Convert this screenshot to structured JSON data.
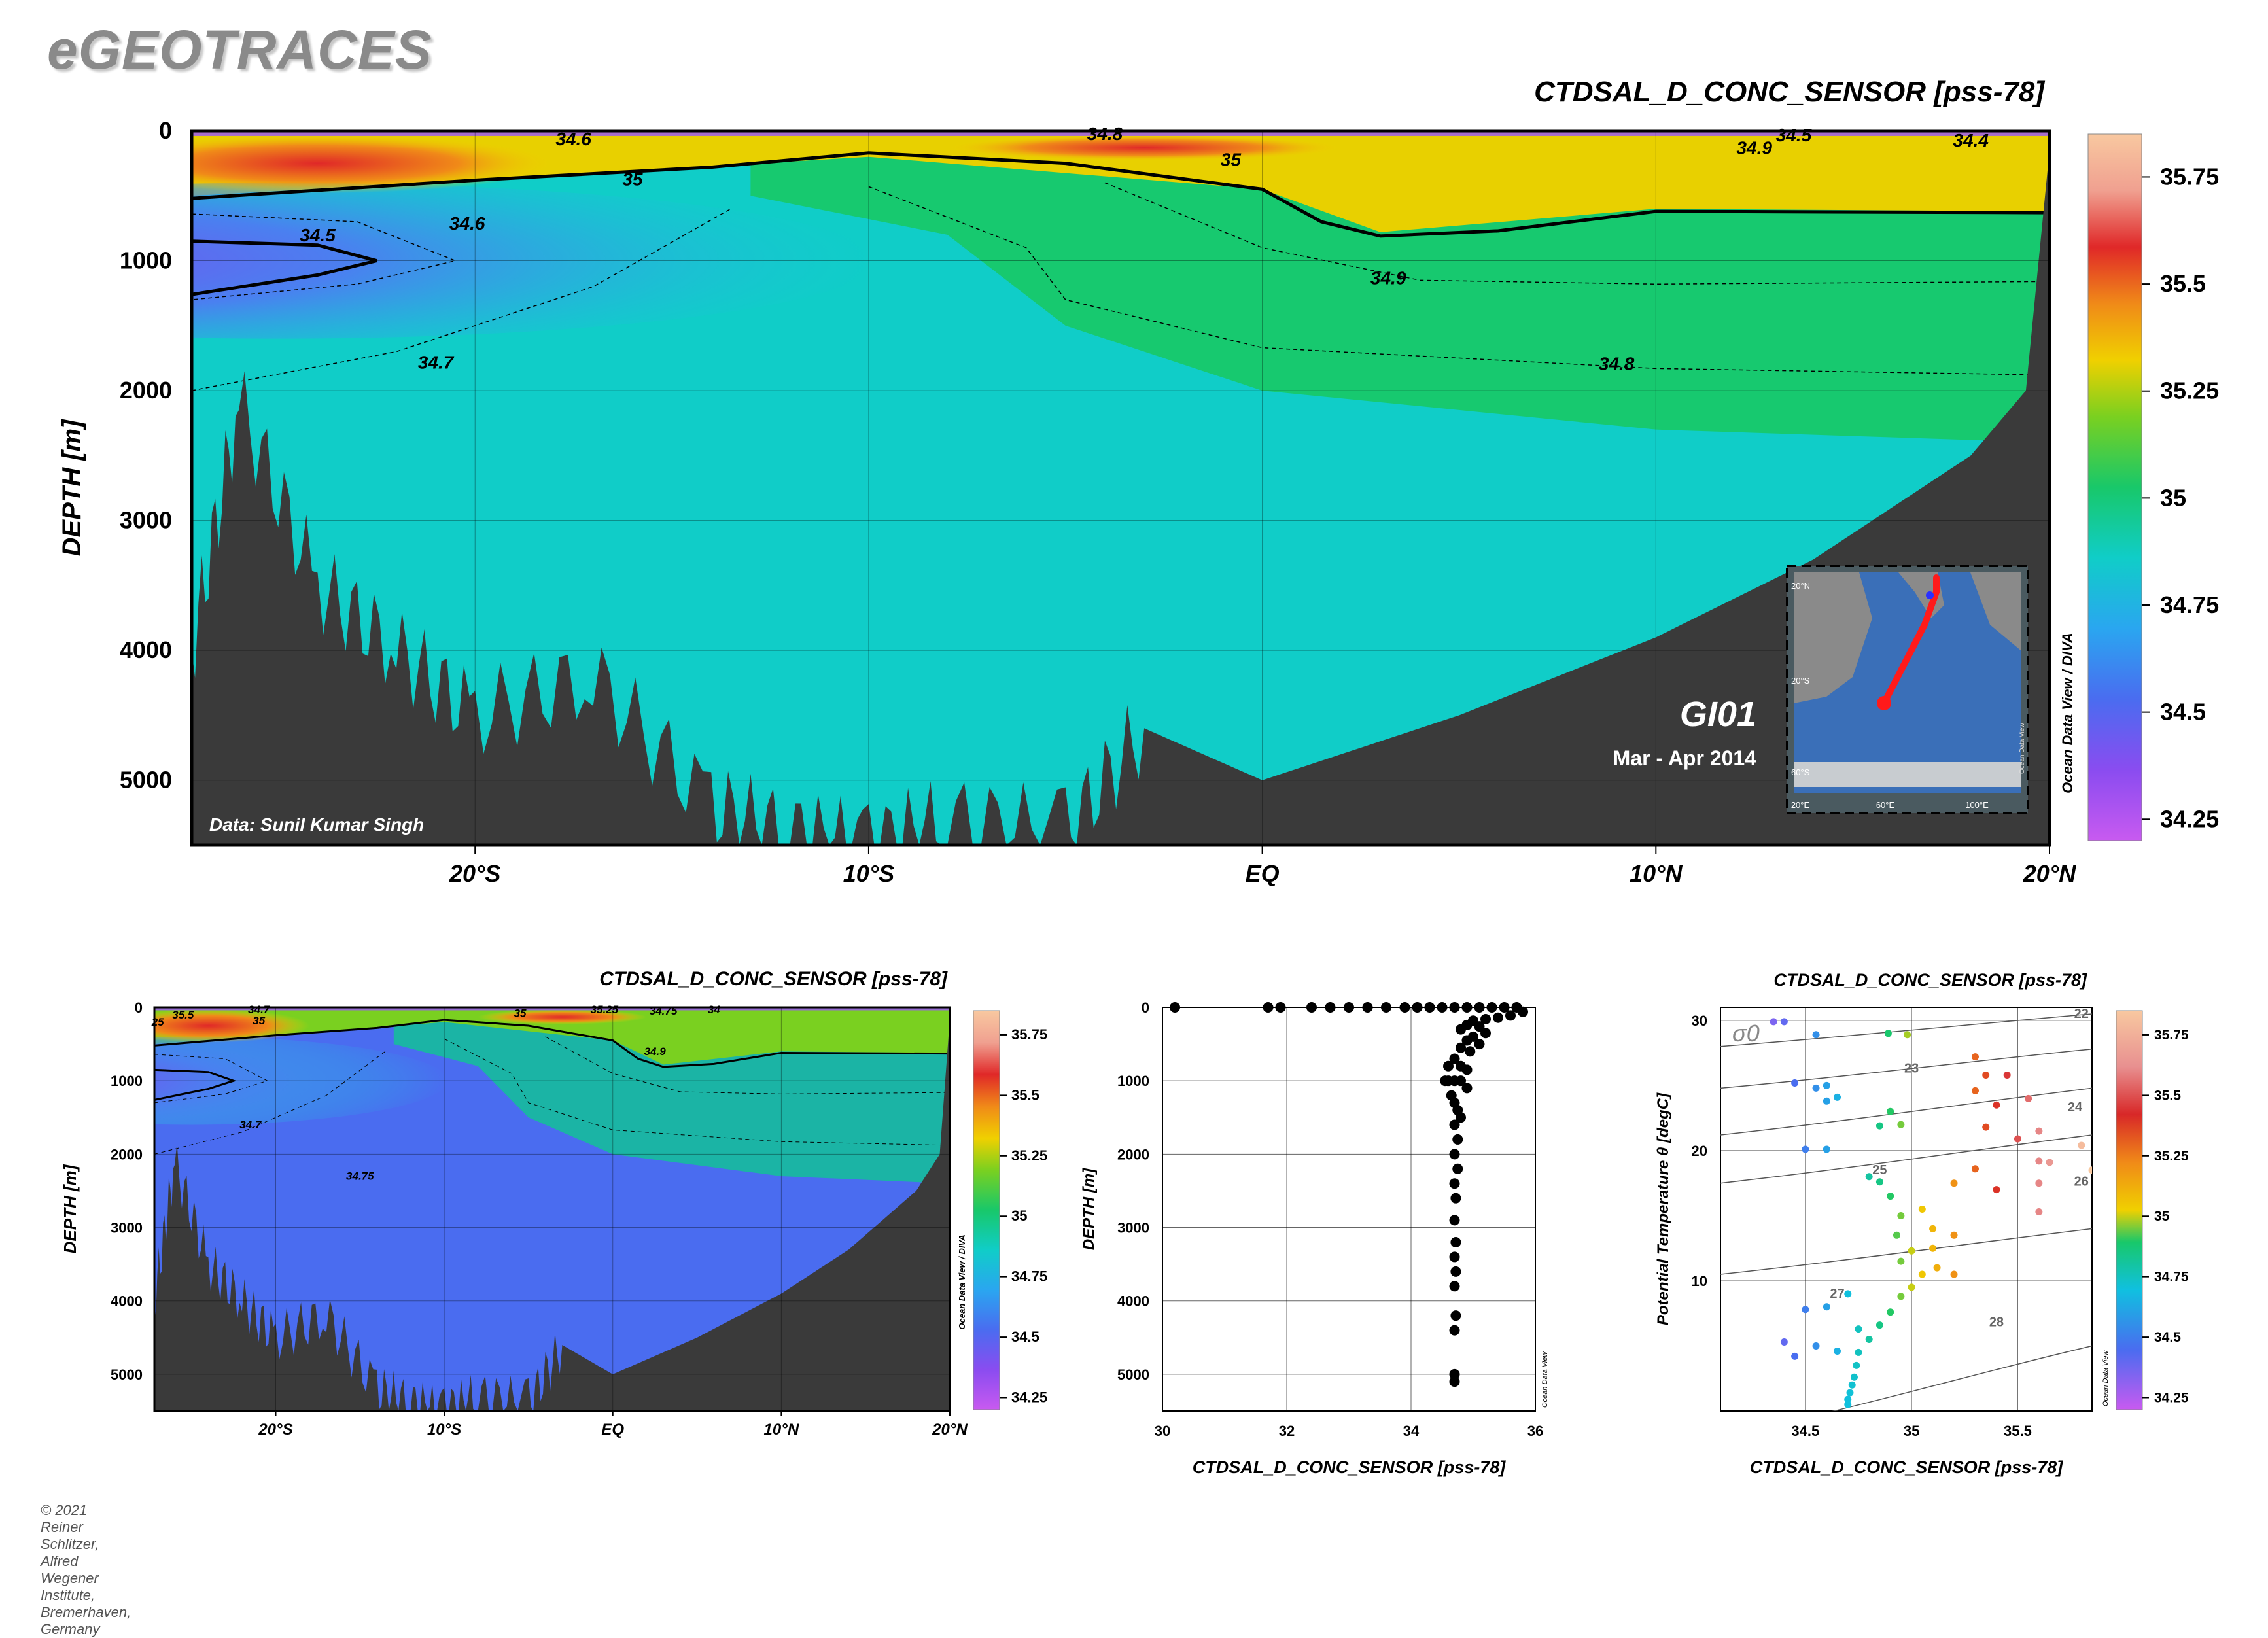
{
  "brand": "eGEOTRACES",
  "copyright": "© 2021 Reiner Schlitzer, Alfred Wegener Institute, Bremerhaven, Germany",
  "colors": {
    "land": "#3a3a3a",
    "salinity_scale": [
      "#c85af0",
      "#8a4cf0",
      "#4a6cf0",
      "#2aa6f0",
      "#10cdc8",
      "#18c86a",
      "#7ad020",
      "#f0d000",
      "#f08a18",
      "#e02828",
      "#f0a090",
      "#f8c8a0"
    ]
  },
  "section_main": {
    "title": "CTDSAL_D_CONC_SENSOR [pss-78]",
    "ylabel": "DEPTH [m]",
    "ytick_labels": [
      "0",
      "1000",
      "2000",
      "3000",
      "4000",
      "5000"
    ],
    "xtick_labels": [
      "20°S",
      "10°S",
      "EQ",
      "10°N",
      "20°N"
    ],
    "credit": "Data: Sunil Kumar Singh",
    "cruise": "GI01",
    "period": "Mar - Apr 2014",
    "side_label": "Ocean Data View / DIVA",
    "colorbar_labels": [
      "35.75",
      "35.5",
      "35.25",
      "35",
      "34.75",
      "34.5",
      "34.25"
    ],
    "contour_labels": [
      "34.6",
      "34.8",
      "34.5",
      "34.9",
      "34.4",
      "35",
      "35",
      "34.5",
      "34.6",
      "34.9",
      "34.7",
      "34.8"
    ],
    "inset": {
      "lat_labels": [
        "20°N",
        "20°S",
        "60°S"
      ],
      "lon_labels": [
        "20°E",
        "60°E",
        "100°E"
      ],
      "side_label": "Ocean Data View"
    }
  },
  "section_small": {
    "title": "CTDSAL_D_CONC_SENSOR [pss-78]",
    "ylabel": "DEPTH [m]",
    "ytick_labels": [
      "0",
      "1000",
      "2000",
      "3000",
      "4000",
      "5000"
    ],
    "xtick_labels": [
      "20°S",
      "10°S",
      "EQ",
      "10°N",
      "20°N"
    ],
    "side_label": "Ocean Data View / DIVA",
    "colorbar_labels": [
      "35.75",
      "35.5",
      "35.25",
      "35",
      "34.75",
      "34.5",
      "34.25"
    ],
    "contour_labels": [
      "35.5",
      "34.7",
      "25",
      "35",
      "35.25",
      "34.75",
      "34",
      "35",
      "34.9",
      "34.7",
      "34.75"
    ]
  },
  "chart_data": [
    {
      "type": "heatmap",
      "title": "CTDSAL_D_CONC_SENSOR [pss-78]",
      "xlabel": "",
      "ylabel": "DEPTH [m]",
      "x_ticks": [
        "20°S",
        "10°S",
        "EQ",
        "10°N",
        "20°N"
      ],
      "xlim": [
        -27.2,
        20
      ],
      "ylim": [
        5500,
        0
      ],
      "colorbar": {
        "min": 34.2,
        "max": 35.85,
        "ticks": [
          34.25,
          34.5,
          34.75,
          35,
          35.25,
          35.5,
          35.75
        ]
      },
      "contours": [
        {
          "level": 35,
          "depth_profile": [
            [
              -27.2,
              520
            ],
            [
              -20,
              380
            ],
            [
              -14,
              280
            ],
            [
              -10,
              170
            ],
            [
              -5,
              250
            ],
            [
              0,
              450
            ],
            [
              1.5,
              700
            ],
            [
              3,
              810
            ],
            [
              6,
              770
            ],
            [
              10,
              620
            ],
            [
              20,
              630
            ]
          ]
        },
        {
          "level": 34.5,
          "depth_profile": [
            [
              -27.2,
              850
            ],
            [
              -24,
              880
            ],
            [
              -22.5,
              1000
            ],
            [
              -24,
              1110
            ],
            [
              -27.2,
              1260
            ]
          ]
        },
        {
          "level": 34.6,
          "depth_profile": [
            [
              -27.2,
              640
            ],
            [
              -23,
              700
            ],
            [
              -20.5,
              1000
            ],
            [
              -23,
              1180
            ],
            [
              -27.2,
              1300
            ]
          ]
        },
        {
          "level": 34.7,
          "depth_profile": [
            [
              -27.2,
              2000
            ],
            [
              -22,
              1700
            ],
            [
              -17,
              1200
            ],
            [
              -13.5,
              600
            ]
          ]
        },
        {
          "level": 34.8,
          "depth_profile": [
            [
              -10,
              430
            ],
            [
              -6,
              900
            ],
            [
              -5,
              1300
            ],
            [
              0,
              1670
            ],
            [
              10,
              1830
            ],
            [
              20,
              1880
            ]
          ]
        },
        {
          "level": 34.9,
          "depth_profile": [
            [
              -4,
              400
            ],
            [
              0,
              900
            ],
            [
              4,
              1150
            ],
            [
              10,
              1180
            ],
            [
              20,
              1160
            ]
          ]
        }
      ],
      "bottom_depth": [
        [
          -27.2,
          4000
        ],
        [
          -26,
          2100
        ],
        [
          -24,
          3500
        ],
        [
          -22,
          4000
        ],
        [
          -20,
          4500
        ],
        [
          -17,
          4200
        ],
        [
          -14,
          5200
        ],
        [
          -12,
          5400
        ],
        [
          -10,
          5500
        ],
        [
          -8,
          5300
        ],
        [
          -5,
          5400
        ],
        [
          -3,
          4600
        ],
        [
          0,
          5000
        ],
        [
          5,
          4500
        ],
        [
          10,
          3900
        ],
        [
          14,
          3300
        ],
        [
          18,
          2500
        ],
        [
          19.4,
          2000
        ],
        [
          20,
          150
        ]
      ],
      "annotation": [
        "Data: Sunil Kumar Singh",
        "GI01",
        "Mar - Apr 2014"
      ]
    },
    {
      "type": "heatmap",
      "title": "CTDSAL_D_CONC_SENSOR [pss-78]",
      "ylabel": "DEPTH [m]",
      "x_ticks": [
        "20°S",
        "10°S",
        "EQ",
        "10°N",
        "20°N"
      ],
      "xlim": [
        -27.2,
        20
      ],
      "ylim": [
        5500,
        0
      ],
      "colorbar": {
        "min": 34.2,
        "max": 35.85,
        "ticks": [
          34.25,
          34.5,
          34.75,
          35,
          35.25,
          35.5,
          35.75
        ]
      }
    },
    {
      "type": "scatter",
      "title": "",
      "xlabel": "CTDSAL_D_CONC_SENSOR [pss-78]",
      "ylabel": "DEPTH [m]",
      "xlim": [
        30,
        36
      ],
      "ylim": [
        5500,
        0
      ],
      "x_ticks": [
        30,
        32,
        34,
        36
      ],
      "y_ticks": [
        0,
        1000,
        2000,
        3000,
        4000,
        5000
      ],
      "side_label": "Ocean Data View",
      "points": [
        [
          30.2,
          0
        ],
        [
          31.7,
          0
        ],
        [
          31.9,
          0
        ],
        [
          32.4,
          0
        ],
        [
          32.7,
          0
        ],
        [
          33.0,
          0
        ],
        [
          33.3,
          0
        ],
        [
          33.6,
          0
        ],
        [
          33.9,
          0
        ],
        [
          34.1,
          0
        ],
        [
          34.3,
          0
        ],
        [
          34.5,
          0
        ],
        [
          34.7,
          0
        ],
        [
          34.9,
          0
        ],
        [
          35.1,
          0
        ],
        [
          35.3,
          0
        ],
        [
          35.5,
          0
        ],
        [
          35.7,
          0
        ],
        [
          35.8,
          60
        ],
        [
          35.6,
          110
        ],
        [
          35.4,
          140
        ],
        [
          35.2,
          160
        ],
        [
          35.0,
          180
        ],
        [
          34.9,
          240
        ],
        [
          35.1,
          260
        ],
        [
          34.8,
          300
        ],
        [
          35.2,
          350
        ],
        [
          35.0,
          400
        ],
        [
          34.9,
          450
        ],
        [
          35.1,
          500
        ],
        [
          34.8,
          550
        ],
        [
          34.95,
          600
        ],
        [
          34.7,
          700
        ],
        [
          34.8,
          800
        ],
        [
          34.6,
          800
        ],
        [
          34.9,
          850
        ],
        [
          34.55,
          1000
        ],
        [
          34.6,
          1000
        ],
        [
          34.7,
          1000
        ],
        [
          34.8,
          1000
        ],
        [
          34.9,
          1100
        ],
        [
          34.65,
          1200
        ],
        [
          34.7,
          1300
        ],
        [
          34.75,
          1400
        ],
        [
          34.8,
          1500
        ],
        [
          34.7,
          1600
        ],
        [
          34.75,
          1800
        ],
        [
          34.7,
          2000
        ],
        [
          34.75,
          2200
        ],
        [
          34.7,
          2400
        ],
        [
          34.72,
          2600
        ],
        [
          34.7,
          2900
        ],
        [
          34.72,
          3200
        ],
        [
          34.7,
          3400
        ],
        [
          34.72,
          3600
        ],
        [
          34.7,
          3800
        ],
        [
          34.72,
          4200
        ],
        [
          34.7,
          4400
        ],
        [
          34.7,
          5000
        ],
        [
          34.7,
          5100
        ]
      ]
    },
    {
      "type": "scatter",
      "title": "CTDSAL_D_CONC_SENSOR [pss-78]",
      "xlabel": "CTDSAL_D_CONC_SENSOR [pss-78]",
      "ylabel": "Potential Temperature θ [degC]",
      "xlim": [
        34.1,
        35.85
      ],
      "ylim": [
        0,
        31
      ],
      "x_ticks": [
        34.5,
        35,
        35.5
      ],
      "y_ticks": [
        10,
        20,
        30
      ],
      "density_label": "σ0",
      "isopycnal_labels": [
        "22",
        "23",
        "24",
        "25",
        "26",
        "27",
        "28"
      ],
      "colorbar": {
        "min": 34.2,
        "max": 35.85,
        "ticks": [
          34.25,
          34.5,
          34.75,
          35,
          35.25,
          35.5,
          35.75
        ]
      },
      "side_label": "Ocean Data View",
      "points": [
        [
          34.35,
          29.9
        ],
        [
          34.4,
          29.9
        ],
        [
          34.55,
          28.9
        ],
        [
          34.98,
          28.9
        ],
        [
          34.89,
          29.0
        ],
        [
          34.45,
          25.2
        ],
        [
          34.55,
          24.8
        ],
        [
          34.6,
          25.0
        ],
        [
          34.65,
          24.1
        ],
        [
          34.6,
          23.8
        ],
        [
          34.9,
          23.0
        ],
        [
          34.85,
          21.9
        ],
        [
          34.95,
          22.0
        ],
        [
          34.5,
          20.1
        ],
        [
          34.6,
          20.1
        ],
        [
          34.8,
          18.0
        ],
        [
          34.85,
          17.6
        ],
        [
          34.9,
          16.5
        ],
        [
          34.95,
          15.0
        ],
        [
          34.93,
          13.5
        ],
        [
          35.0,
          12.3
        ],
        [
          34.95,
          11.5
        ],
        [
          35.05,
          10.5
        ],
        [
          35.0,
          9.5
        ],
        [
          34.95,
          8.8
        ],
        [
          34.9,
          7.6
        ],
        [
          34.85,
          6.6
        ],
        [
          34.8,
          5.5
        ],
        [
          34.75,
          4.5
        ],
        [
          34.74,
          3.5
        ],
        [
          34.73,
          2.6
        ],
        [
          34.72,
          2.0
        ],
        [
          34.71,
          1.4
        ],
        [
          34.7,
          0.9
        ],
        [
          34.7,
          0.5
        ],
        [
          35.05,
          15.5
        ],
        [
          35.1,
          14.0
        ],
        [
          35.1,
          12.5
        ],
        [
          35.12,
          11.0
        ],
        [
          35.2,
          13.5
        ],
        [
          35.2,
          10.5
        ],
        [
          35.3,
          27.2
        ],
        [
          35.35,
          25.8
        ],
        [
          35.45,
          25.8
        ],
        [
          35.3,
          24.6
        ],
        [
          35.55,
          24.0
        ],
        [
          35.4,
          23.5
        ],
        [
          35.35,
          21.8
        ],
        [
          35.6,
          21.5
        ],
        [
          35.8,
          20.4
        ],
        [
          35.5,
          20.9
        ],
        [
          35.6,
          19.2
        ],
        [
          35.65,
          19.1
        ],
        [
          35.3,
          18.6
        ],
        [
          35.2,
          17.5
        ],
        [
          35.4,
          17.0
        ],
        [
          35.85,
          18.5
        ],
        [
          35.6,
          15.3
        ],
        [
          35.6,
          17.5
        ],
        [
          34.7,
          9.0
        ],
        [
          34.6,
          8.0
        ],
        [
          34.5,
          7.8
        ],
        [
          34.55,
          5.0
        ],
        [
          34.65,
          4.6
        ],
        [
          34.75,
          6.3
        ],
        [
          34.4,
          5.3
        ],
        [
          34.45,
          4.2
        ]
      ]
    }
  ]
}
